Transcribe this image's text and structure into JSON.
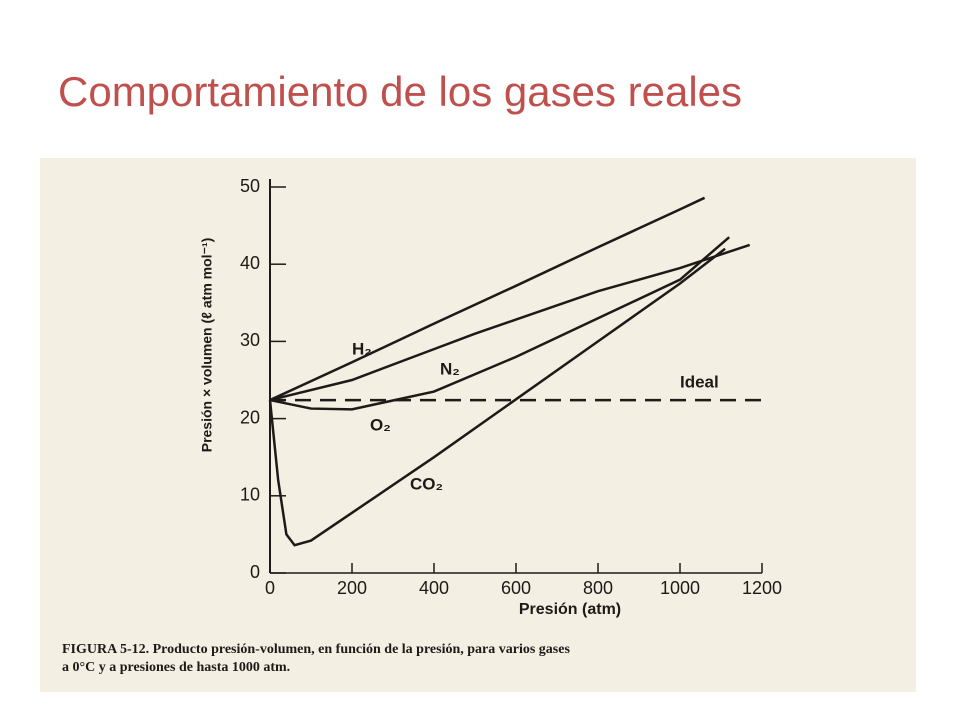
{
  "title": "Comportamiento de los gases reales",
  "caption": [
    "FIGURA 5-12.  Producto presión-volumen, en función de la presión, para varios gases",
    "a 0°C y a presiones de hasta 1000 atm."
  ],
  "chart_data": {
    "type": "line",
    "xlabel": "Presión (atm)",
    "ylabel": "Presión × volumen (ℓ atm mol⁻¹)",
    "xlim": [
      0,
      1200
    ],
    "xticks": [
      0,
      200,
      400,
      600,
      800,
      1000,
      1200
    ],
    "ylim": [
      0,
      50
    ],
    "yticks": [
      0,
      10,
      20,
      30,
      40,
      50
    ],
    "series": [
      {
        "name": "H₂",
        "color": "#1e1a18",
        "dashed": false,
        "x": [
          0,
          200,
          400,
          600,
          800,
          1000,
          1060
        ],
        "values": [
          22.4,
          27.3,
          32.3,
          37.2,
          42.2,
          47.1,
          48.6
        ]
      },
      {
        "name": "N₂",
        "color": "#1e1a18",
        "dashed": false,
        "x": [
          0,
          200,
          400,
          500,
          800,
          1000,
          1170
        ],
        "values": [
          22.4,
          25,
          29,
          31,
          36.5,
          39.5,
          42.5
        ]
      },
      {
        "name": "O₂",
        "color": "#1e1a18",
        "dashed": false,
        "x": [
          0,
          100,
          200,
          400,
          600,
          800,
          1000,
          1120
        ],
        "values": [
          22.4,
          21.3,
          21.2,
          23.5,
          28,
          33,
          38,
          43.5
        ]
      },
      {
        "name": "CO₂",
        "color": "#1e1a18",
        "dashed": false,
        "x": [
          0,
          20,
          40,
          60,
          100,
          200,
          400,
          600,
          800,
          1000,
          1110
        ],
        "values": [
          22.4,
          12,
          5,
          3.6,
          4.2,
          7.8,
          15,
          22.5,
          30,
          37.5,
          42
        ]
      },
      {
        "name": "Ideal",
        "color": "#1e1a18",
        "dashed": true,
        "x": [
          0,
          1200
        ],
        "values": [
          22.4,
          22.4
        ]
      }
    ]
  }
}
